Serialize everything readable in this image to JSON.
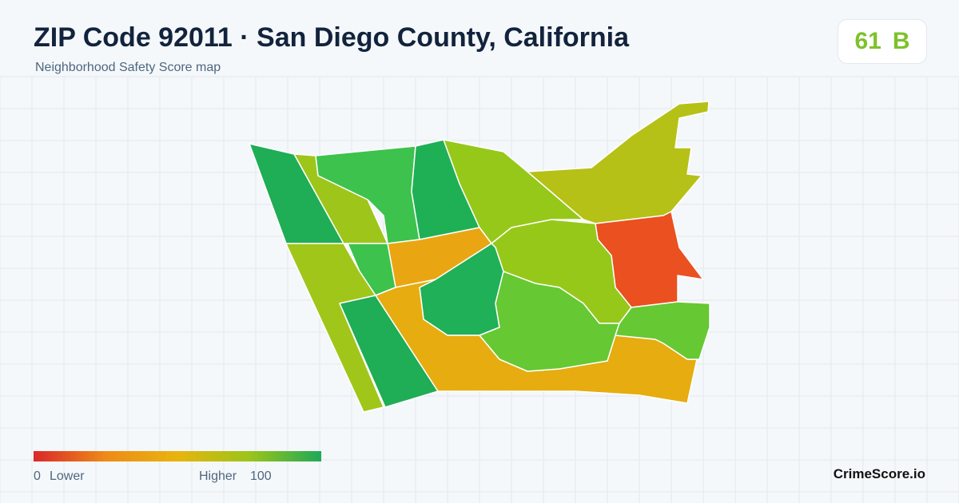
{
  "header": {
    "title": "ZIP Code 92011 · San Diego County, California",
    "subtitle": "Neighborhood Safety Score map"
  },
  "score": {
    "value": 61,
    "grade": "B"
  },
  "legend": {
    "min": 0,
    "min_label": "Lower",
    "max_label": "Higher",
    "max": 100
  },
  "footer": {
    "brand": "CrimeScore.io"
  }
}
